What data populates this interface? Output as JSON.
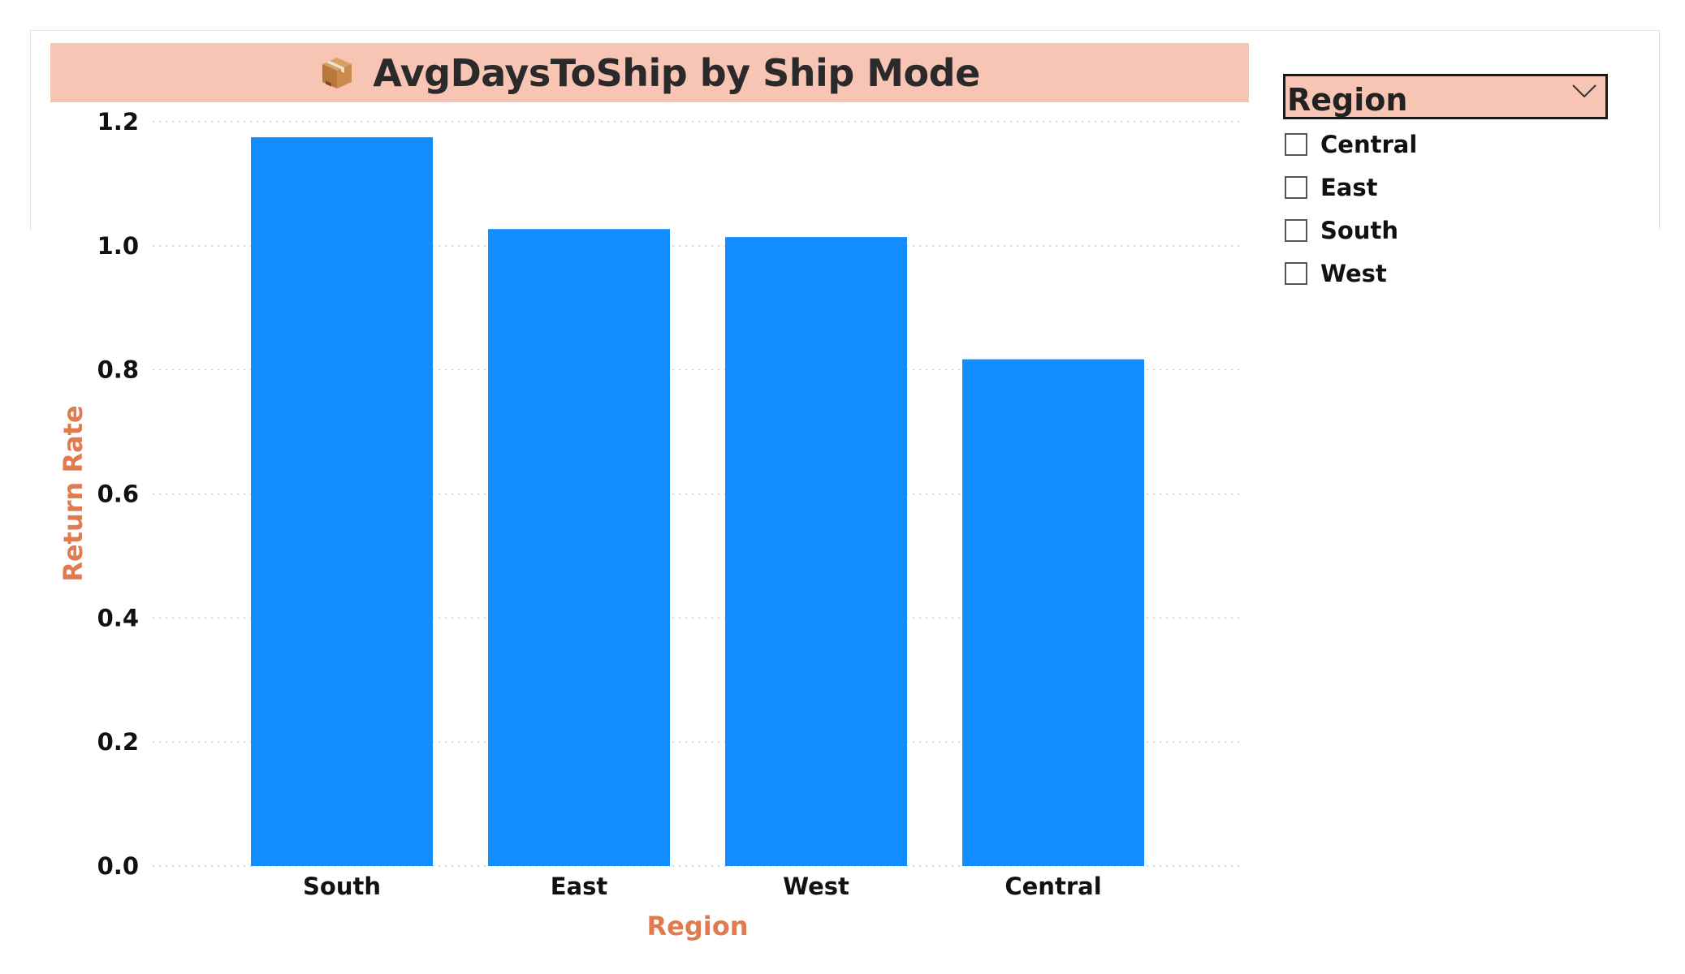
{
  "colors": {
    "bar": "#118dff",
    "title_background": "#f8c4b4",
    "axis_title": "#e07a4f",
    "gridline": "#c8c8c8"
  },
  "header": {
    "icon": "package-icon",
    "title": "AvgDaysToShip by Ship Mode"
  },
  "slicer": {
    "title": "Region",
    "icon": "chevron-down-icon",
    "items": [
      {
        "label": "Central",
        "checked": false
      },
      {
        "label": "East",
        "checked": false
      },
      {
        "label": "South",
        "checked": false
      },
      {
        "label": "West",
        "checked": false
      }
    ]
  },
  "chart_data": {
    "type": "bar",
    "categories": [
      "South",
      "East",
      "West",
      "Central"
    ],
    "values": [
      1.175,
      1.027,
      1.014,
      0.817
    ],
    "title": "AvgDaysToShip by Ship Mode",
    "xlabel": "Region",
    "ylabel": "Return Rate",
    "ylim": [
      0,
      1.2
    ],
    "yticks": [
      "0.0",
      "0.2",
      "0.4",
      "0.6",
      "0.8",
      "1.0",
      "1.2"
    ],
    "grid": true,
    "gridline_style": "dotted"
  }
}
